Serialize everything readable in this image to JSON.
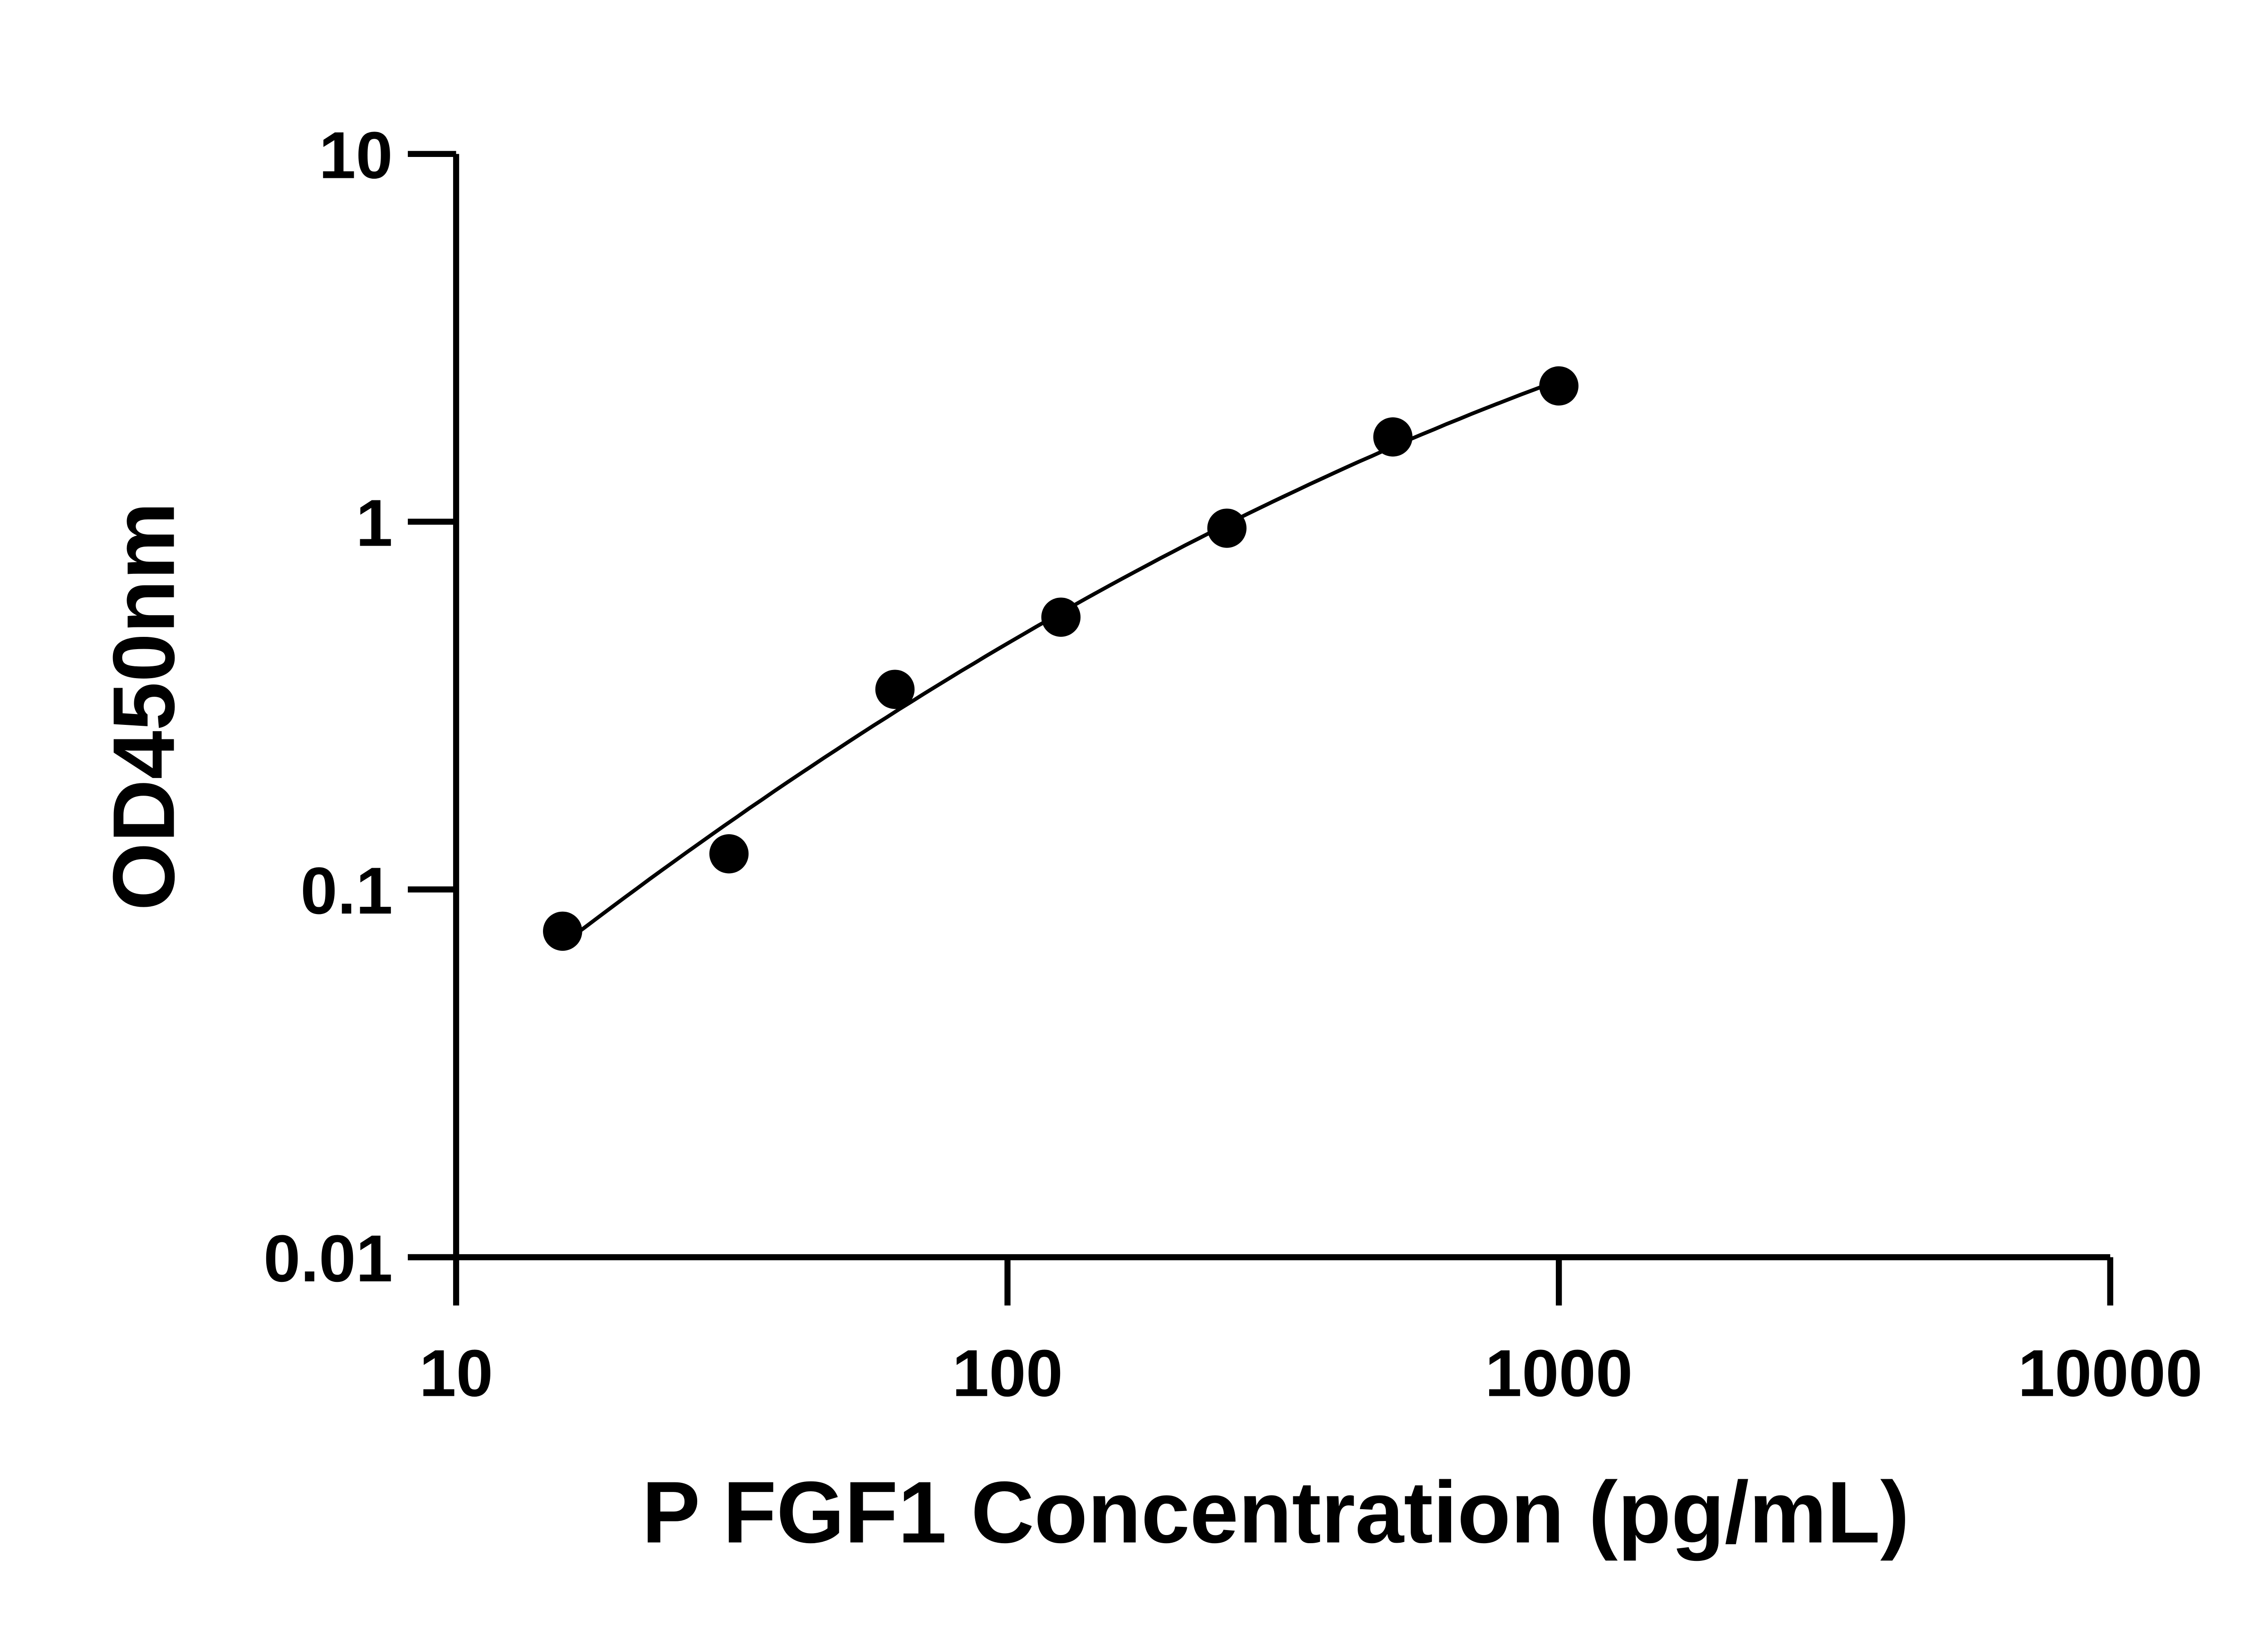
{
  "chart_data": {
    "type": "scatter",
    "title": "",
    "xlabel": "P FGF1 Concentration (pg/mL)",
    "ylabel": "OD450nm",
    "xscale": "log",
    "yscale": "log",
    "xlim": [
      10,
      10000
    ],
    "ylim": [
      0.01,
      10
    ],
    "xticks": [
      "10",
      "100",
      "1000",
      "10000"
    ],
    "yticks": [
      "0.01",
      "0.1",
      "1",
      "10"
    ],
    "grid": false,
    "legend": "none",
    "series": [
      {
        "x": [
          15.6,
          31.25,
          62.5,
          125,
          250,
          500,
          1000
        ],
        "y": [
          0.077,
          0.125,
          0.35,
          0.55,
          0.96,
          1.7,
          2.34
        ],
        "fit_curve": true,
        "color": "#000000"
      }
    ]
  }
}
